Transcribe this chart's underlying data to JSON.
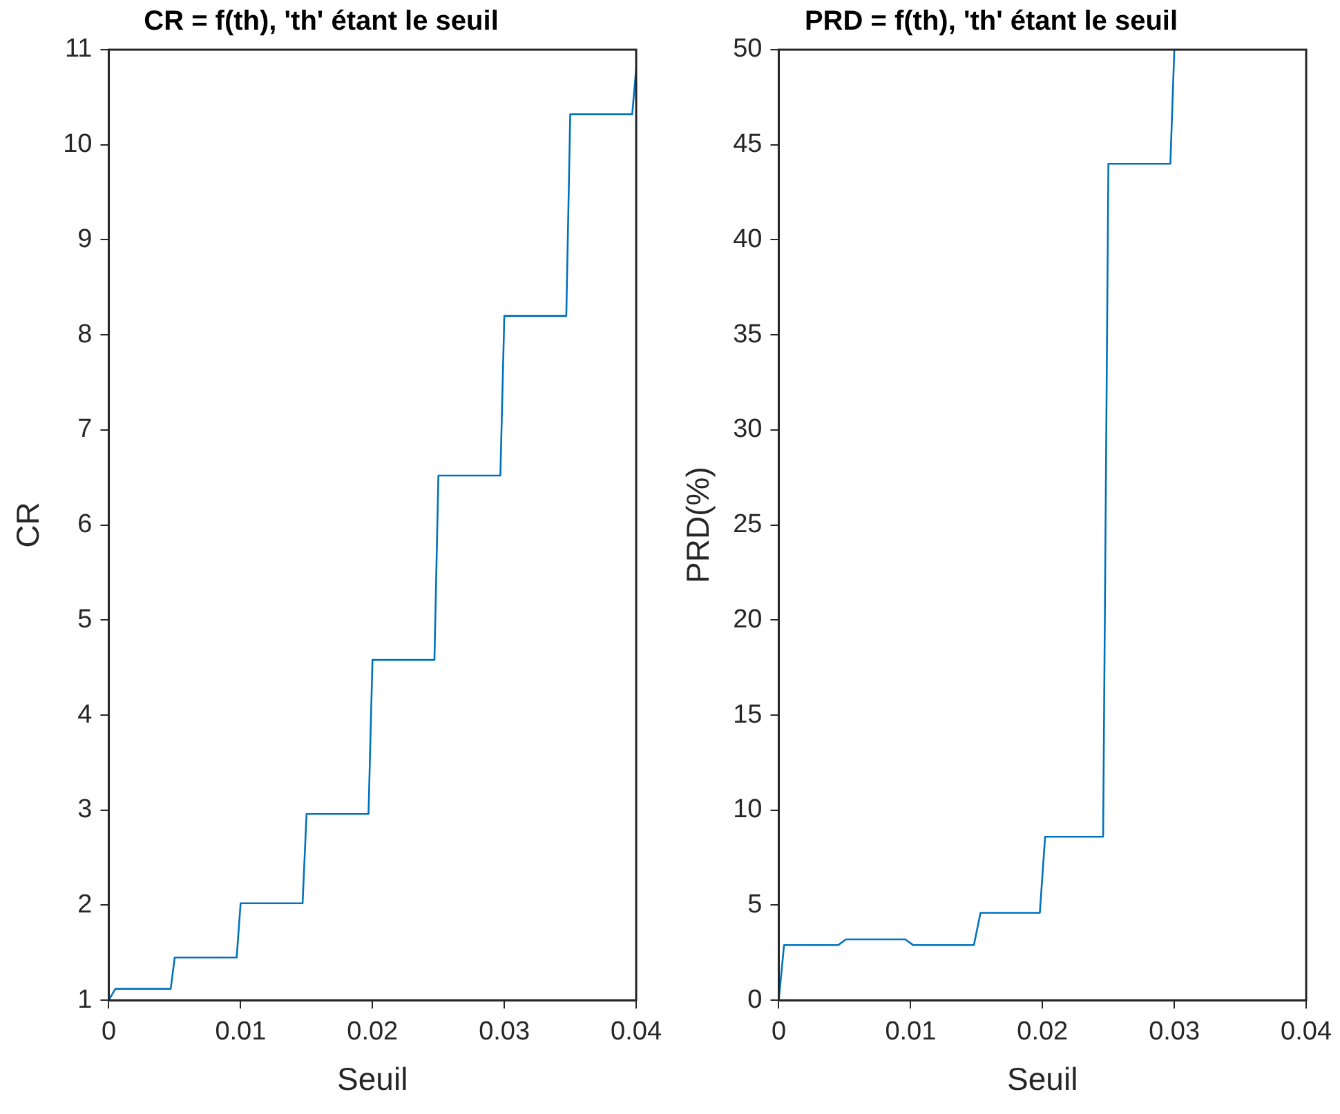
{
  "chart_data": [
    {
      "type": "line",
      "title": "CR = f(th), 'th' étant le seuil",
      "xlabel": "Seuil",
      "ylabel": "CR",
      "xlim": [
        0,
        0.04
      ],
      "ylim": [
        1,
        11
      ],
      "xticks": [
        0,
        0.01,
        0.02,
        0.03,
        0.04
      ],
      "yticks": [
        1,
        2,
        3,
        4,
        5,
        6,
        7,
        8,
        9,
        10,
        11
      ],
      "legend": false,
      "marker": "none",
      "line_style": "solid",
      "series": [
        {
          "color": "#0072bd",
          "x": [
            0,
            0.0005,
            0.0047,
            0.005,
            0.0097,
            0.01,
            0.0147,
            0.015,
            0.0197,
            0.02,
            0.0247,
            0.025,
            0.0297,
            0.03,
            0.0347,
            0.035,
            0.0397,
            0.04
          ],
          "values": [
            1.0,
            1.12,
            1.12,
            1.45,
            1.45,
            2.02,
            2.02,
            2.96,
            2.96,
            4.58,
            4.58,
            6.52,
            6.52,
            8.2,
            8.2,
            10.32,
            10.32,
            10.8
          ]
        }
      ]
    },
    {
      "type": "line",
      "title": "PRD = f(th), 'th' étant le seuil",
      "xlabel": "Seuil",
      "ylabel": "PRD(%)",
      "xlim": [
        0,
        0.04
      ],
      "ylim": [
        0,
        50
      ],
      "xticks": [
        0,
        0.01,
        0.02,
        0.03,
        0.04
      ],
      "yticks": [
        0,
        5,
        10,
        15,
        20,
        25,
        30,
        35,
        40,
        45,
        50
      ],
      "legend": false,
      "marker": "none",
      "line_style": "solid",
      "series": [
        {
          "color": "#0072bd",
          "x": [
            0,
            0.0004,
            0.0045,
            0.0051,
            0.0096,
            0.0102,
            0.0148,
            0.0153,
            0.0198,
            0.0202,
            0.0246,
            0.025,
            0.0297,
            0.03
          ],
          "values": [
            0,
            2.9,
            2.9,
            3.2,
            3.2,
            2.9,
            2.9,
            4.6,
            4.6,
            8.6,
            8.6,
            44,
            44,
            50
          ]
        }
      ]
    }
  ]
}
